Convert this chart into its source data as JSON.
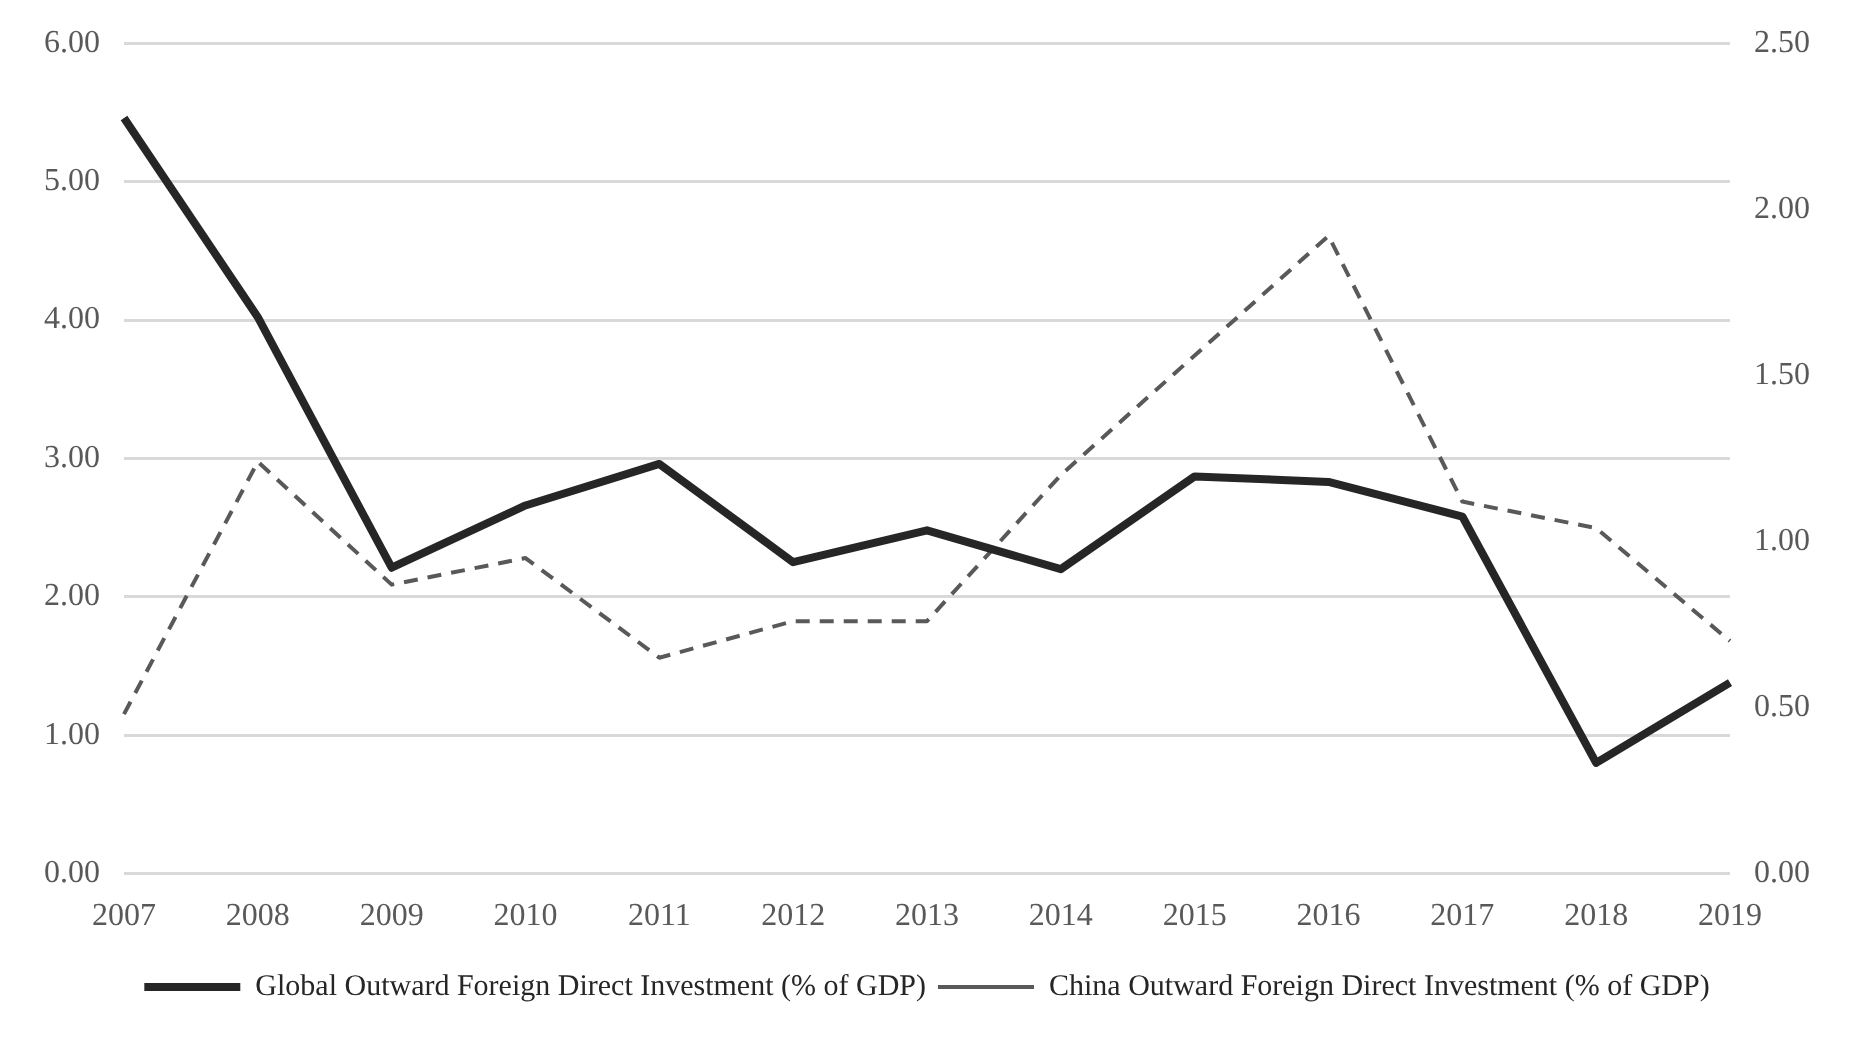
{
  "chart_data": {
    "type": "line",
    "categories": [
      "2007",
      "2008",
      "2009",
      "2010",
      "2011",
      "2012",
      "2013",
      "2014",
      "2015",
      "2016",
      "2017",
      "2018",
      "2019"
    ],
    "series": [
      {
        "name": "Global Outward Foreign Direct Investment (% of GDP)",
        "color": "#262626",
        "line_style": "solid",
        "values": [
          5.46,
          4.02,
          2.21,
          2.66,
          2.96,
          2.25,
          2.48,
          2.2,
          2.87,
          2.83,
          2.58,
          0.8,
          1.38
        ]
      },
      {
        "name": "China Outward Foreign Direct Investment (% of GDP)",
        "color": "#595959",
        "line_style": "dashed",
        "axis": "y2",
        "values": [
          0.48,
          1.24,
          0.87,
          0.95,
          0.65,
          0.76,
          0.76,
          1.2,
          1.56,
          1.92,
          1.12,
          1.04,
          0.7
        ]
      }
    ],
    "ylim": [
      0,
      6
    ],
    "yticks": [
      {
        "value": 0,
        "label": "0.00"
      },
      {
        "value": 1,
        "label": "1.00"
      },
      {
        "value": 2,
        "label": "2.00"
      },
      {
        "value": 3,
        "label": "3.00"
      },
      {
        "value": 4,
        "label": "4.00"
      },
      {
        "value": 5,
        "label": "5.00"
      },
      {
        "value": 6,
        "label": "6.00"
      }
    ],
    "y2lim": [
      0,
      2.5
    ],
    "y2ticks": [
      {
        "value": 0,
        "label": "0.00"
      },
      {
        "value": 0.5,
        "label": "0.50"
      },
      {
        "value": 1,
        "label": "1.00"
      },
      {
        "value": 1.5,
        "label": "1.50"
      },
      {
        "value": 2,
        "label": "2.00"
      },
      {
        "value": 2.5,
        "label": "2.50"
      }
    ],
    "grid": "y",
    "legend": "bottom",
    "marker": "none"
  }
}
